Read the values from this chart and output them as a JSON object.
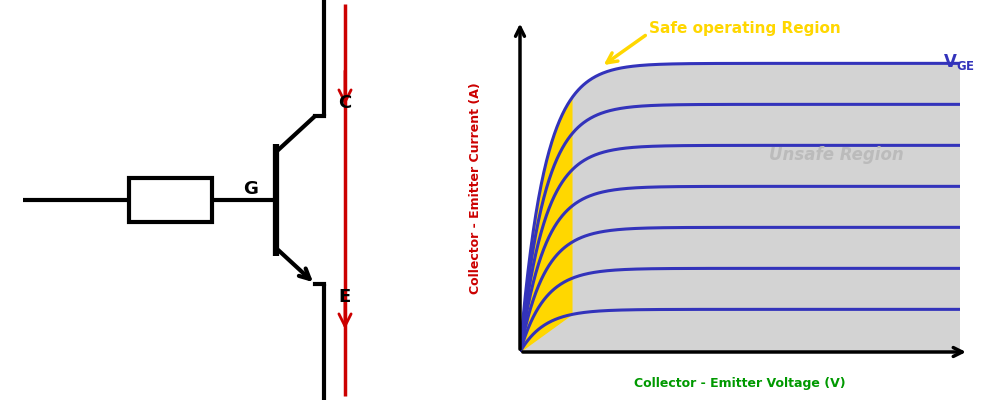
{
  "fig_width": 10.0,
  "fig_height": 4.0,
  "dpi": 100,
  "bg_color": "#ffffff",
  "circuit": {
    "line_color": "#000000",
    "arrow_color": "#cc0000",
    "label_color": "#000000"
  },
  "graph": {
    "n_curves": 7,
    "saturation_color": "#ffd700",
    "safe_region_color": "#d3d3d3",
    "curve_color": "#3333bb",
    "curve_lw": 2.2,
    "ylabel": "Collector - Emitter Current (A)",
    "xlabel": "Collector - Emitter Voltage (V)",
    "ylabel_color": "#cc0000",
    "xlabel_color": "#009900",
    "safe_label": "Safe operating Region",
    "safe_label_color": "#ffd700",
    "unsafe_label": "Unsafe Region",
    "unsafe_label_color": "#bbbbbb",
    "vge_color": "#3333bb",
    "arrow_color": "#ffd700",
    "k_steep": 18
  }
}
